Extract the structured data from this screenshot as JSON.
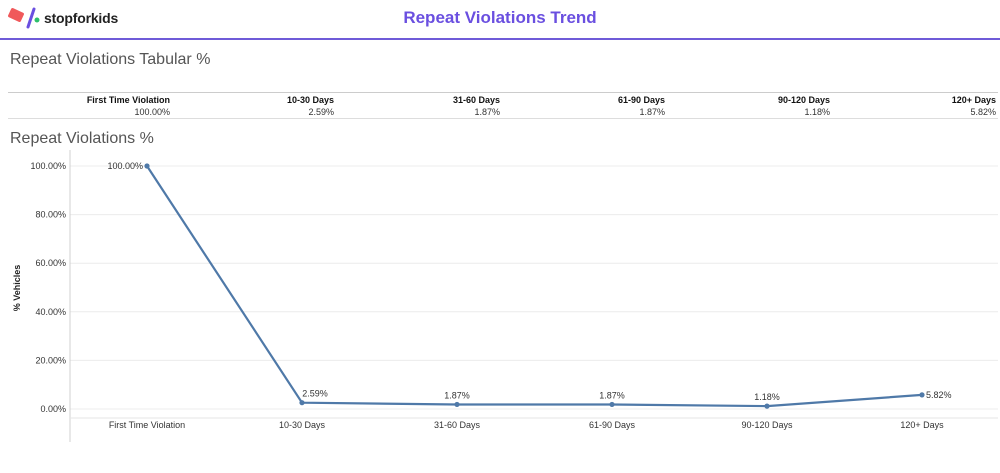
{
  "brand": {
    "name": "stopforkids",
    "colors": {
      "red": "#f0595b",
      "purple": "#6a4fe0",
      "green": "#2dbf6c"
    }
  },
  "header": {
    "title": "Repeat Violations Trend"
  },
  "table_section": {
    "title": "Repeat Violations Tabular %",
    "columns": [
      "First Time Violation",
      "10-30 Days",
      "31-60 Days",
      "61-90 Days",
      "90-120 Days",
      "120+ Days"
    ],
    "values": [
      "100.00%",
      "2.59%",
      "1.87%",
      "1.87%",
      "1.18%",
      "5.82%"
    ]
  },
  "chart_section": {
    "title": "Repeat Violations %"
  },
  "chart_data": {
    "type": "line",
    "ylabel": "% Vehicles",
    "xlabel": "",
    "categories": [
      "First Time Violation",
      "10-30 Days",
      "31-60 Days",
      "61-90 Days",
      "90-120 Days",
      "120+ Days"
    ],
    "values": [
      100.0,
      2.59,
      1.87,
      1.87,
      1.18,
      5.82
    ],
    "data_labels": [
      "100.00%",
      "2.59%",
      "1.87%",
      "1.87%",
      "1.18%",
      "5.82%"
    ],
    "y_ticks": [
      0,
      20,
      40,
      60,
      80,
      100
    ],
    "y_tick_labels": [
      "0.00%",
      "20.00%",
      "40.00%",
      "60.00%",
      "80.00%",
      "100.00%"
    ],
    "ylim": [
      0,
      100
    ],
    "grid": true,
    "line_color": "#4f79a8"
  }
}
